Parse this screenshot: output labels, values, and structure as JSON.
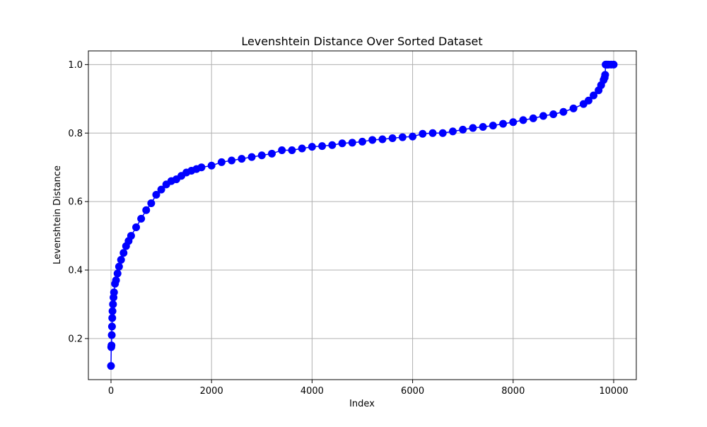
{
  "chart_data": {
    "type": "scatter",
    "title": "Levenshtein Distance Over Sorted Dataset",
    "xlabel": "Index",
    "ylabel": "Levenshtein Distance",
    "xlim": [
      -450,
      10450
    ],
    "ylim": [
      0.08,
      1.04
    ],
    "xticks": [
      0,
      2000,
      4000,
      6000,
      8000,
      10000
    ],
    "yticks": [
      0.2,
      0.4,
      0.6,
      0.8,
      1.0
    ],
    "ytick_labels": [
      "0.2",
      "0.4",
      "0.6",
      "0.8",
      "1.0"
    ],
    "grid": true,
    "legend": "none",
    "series": [
      {
        "color": "#0000ff",
        "marker": "circle",
        "connected": true,
        "x": [
          0,
          5,
          10,
          15,
          20,
          25,
          30,
          40,
          50,
          60,
          80,
          100,
          130,
          160,
          200,
          250,
          300,
          350,
          400,
          500,
          600,
          700,
          800,
          900,
          1000,
          1100,
          1200,
          1300,
          1400,
          1500,
          1600,
          1700,
          1800,
          2000,
          2200,
          2400,
          2600,
          2800,
          3000,
          3200,
          3400,
          3600,
          3800,
          4000,
          4200,
          4400,
          4600,
          4800,
          5000,
          5200,
          5400,
          5600,
          5800,
          6000,
          6200,
          6400,
          6600,
          6800,
          7000,
          7200,
          7400,
          7600,
          7800,
          8000,
          8200,
          8400,
          8600,
          8800,
          9000,
          9200,
          9400,
          9500,
          9600,
          9700,
          9750,
          9800,
          9820,
          9830,
          9840,
          9850,
          9860,
          9880,
          9900,
          9950,
          10000
        ],
        "y": [
          0.12,
          0.175,
          0.18,
          0.21,
          0.235,
          0.26,
          0.28,
          0.3,
          0.32,
          0.335,
          0.36,
          0.37,
          0.39,
          0.41,
          0.43,
          0.45,
          0.47,
          0.485,
          0.5,
          0.525,
          0.55,
          0.575,
          0.595,
          0.62,
          0.635,
          0.65,
          0.66,
          0.665,
          0.675,
          0.685,
          0.69,
          0.695,
          0.7,
          0.705,
          0.715,
          0.72,
          0.725,
          0.73,
          0.735,
          0.74,
          0.75,
          0.75,
          0.755,
          0.76,
          0.762,
          0.765,
          0.77,
          0.772,
          0.775,
          0.78,
          0.782,
          0.785,
          0.788,
          0.79,
          0.798,
          0.8,
          0.8,
          0.805,
          0.81,
          0.815,
          0.818,
          0.822,
          0.827,
          0.832,
          0.838,
          0.843,
          0.85,
          0.855,
          0.862,
          0.872,
          0.885,
          0.895,
          0.91,
          0.925,
          0.94,
          0.955,
          0.962,
          0.97,
          1.0,
          1.0,
          1.0,
          1.0,
          1.0,
          1.0,
          1.0
        ]
      }
    ]
  }
}
